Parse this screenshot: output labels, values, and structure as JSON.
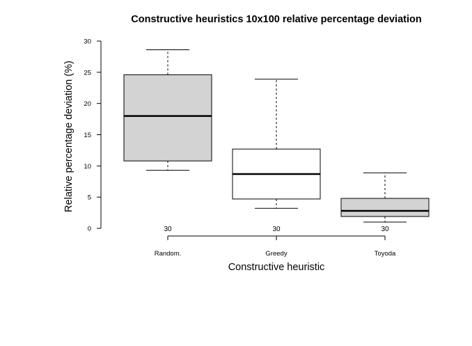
{
  "chart_data": {
    "type": "boxplot",
    "title": "Constructive heuristics 10x100 relative percentage deviation",
    "xlabel": "Constructive heuristic",
    "ylabel": "Relative percentage deviation (%)",
    "ylim": [
      0,
      30
    ],
    "yticks": [
      0,
      5,
      10,
      15,
      20,
      25,
      30
    ],
    "grid": false,
    "categories": [
      "Random.",
      "Greedy",
      "Toyoda"
    ],
    "series": [
      {
        "category": "Random.",
        "n": "30",
        "min": 9.3,
        "q1": 10.8,
        "median": 18.0,
        "q3": 24.6,
        "max": 28.6,
        "fill": "#d3d3d3"
      },
      {
        "category": "Greedy",
        "n": "30",
        "min": 3.2,
        "q1": 4.7,
        "median": 8.7,
        "q3": 12.7,
        "max": 23.9,
        "fill": "#ffffff"
      },
      {
        "category": "Toyoda",
        "n": "30",
        "min": 1.0,
        "q1": 1.9,
        "median": 2.8,
        "q3": 4.8,
        "max": 8.9,
        "fill": "#d3d3d3"
      }
    ]
  }
}
